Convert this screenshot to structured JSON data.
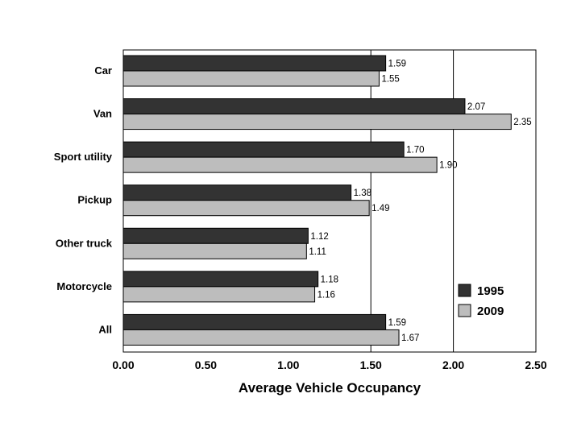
{
  "chart_data": {
    "type": "bar",
    "orientation": "horizontal",
    "categories": [
      "Car",
      "Van",
      "Sport utility",
      "Pickup",
      "Other truck",
      "Motorcycle",
      "All"
    ],
    "series": [
      {
        "name": "1995",
        "color": "#333333",
        "values": [
          1.59,
          2.07,
          1.7,
          1.38,
          1.12,
          1.18,
          1.59
        ],
        "labels": [
          "1.59",
          "2.07",
          "1.70",
          "1.38",
          "1.12",
          "1.18",
          "1.59"
        ]
      },
      {
        "name": "2009",
        "color": "#bdbdbd",
        "values": [
          1.55,
          2.35,
          1.9,
          1.49,
          1.11,
          1.16,
          1.67
        ],
        "labels": [
          "1.55",
          "2.35",
          "1.90",
          "1.49",
          "1.11",
          "1.16",
          "1.67"
        ]
      }
    ],
    "xlabel": "Average Vehicle Occupancy",
    "xlim": [
      0,
      2.5
    ],
    "xticks": [
      0,
      0.5,
      1.0,
      1.5,
      2.0,
      2.5
    ],
    "xtick_labels": [
      "0.00",
      "0.50",
      "1.00",
      "1.50",
      "2.00",
      "2.50"
    ],
    "gridlines_x": [
      1.5,
      2.0
    ],
    "legend_position": "bottom-right"
  }
}
